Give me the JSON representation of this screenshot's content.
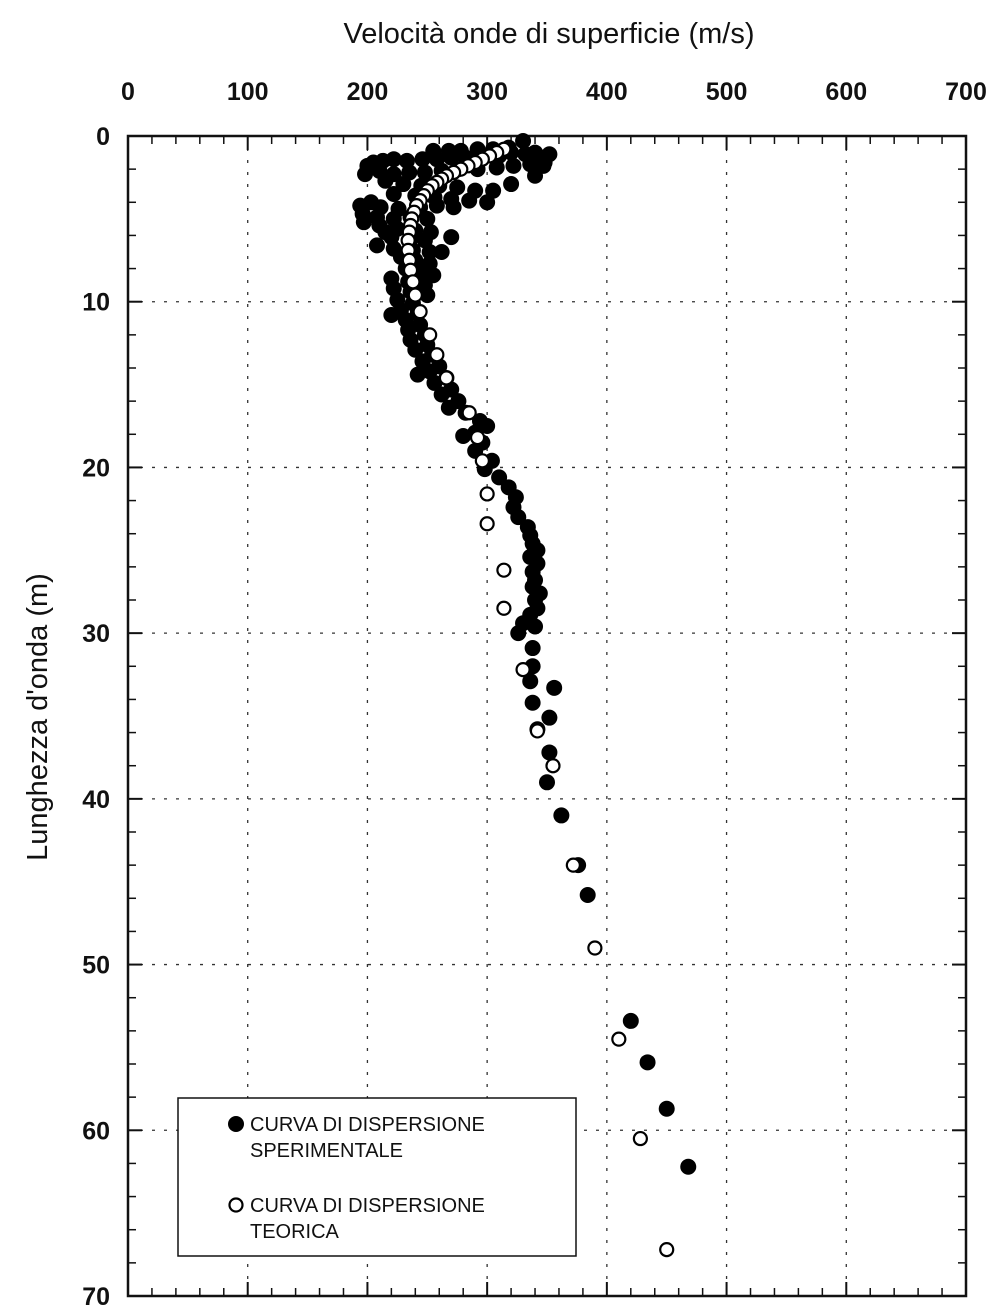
{
  "chart_data": {
    "type": "scatter",
    "xlabel": "Velocità onde di superficie (m/s)",
    "ylabel": "Lunghezza d'onda (m)",
    "xlim": [
      0,
      700
    ],
    "ylim": [
      0,
      70
    ],
    "x_axis_position": "top",
    "y_axis_inverted": true,
    "grid": true,
    "grid_style": "dotted",
    "x_ticks": [
      "0",
      "100",
      "200",
      "300",
      "400",
      "500",
      "600",
      "700"
    ],
    "y_ticks": [
      "0",
      "10",
      "20",
      "30",
      "40",
      "50",
      "60",
      "70"
    ],
    "legend_position": "bottom-left",
    "series": [
      {
        "name": "CURVA DI DISPERSIONE SPERIMENTALE",
        "marker": "filled-circle",
        "color": "#000000",
        "points": [
          [
            330,
            0.3
          ],
          [
            318,
            0.7
          ],
          [
            305,
            0.8
          ],
          [
            292,
            0.8
          ],
          [
            278,
            0.9
          ],
          [
            268,
            0.9
          ],
          [
            255,
            0.9
          ],
          [
            340,
            1.0
          ],
          [
            332,
            1.1
          ],
          [
            320,
            1.0
          ],
          [
            310,
            1.2
          ],
          [
            296,
            1.2
          ],
          [
            282,
            1.3
          ],
          [
            270,
            1.3
          ],
          [
            258,
            1.4
          ],
          [
            246,
            1.4
          ],
          [
            233,
            1.5
          ],
          [
            222,
            1.4
          ],
          [
            213,
            1.5
          ],
          [
            205,
            1.6
          ],
          [
            345,
            1.3
          ],
          [
            352,
            1.1
          ],
          [
            348,
            1.6
          ],
          [
            336,
            1.7
          ],
          [
            322,
            1.8
          ],
          [
            308,
            1.9
          ],
          [
            292,
            2.0
          ],
          [
            276,
            2.0
          ],
          [
            262,
            2.1
          ],
          [
            248,
            2.2
          ],
          [
            235,
            2.2
          ],
          [
            222,
            2.3
          ],
          [
            210,
            2.1
          ],
          [
            200,
            1.8
          ],
          [
            198,
            2.3
          ],
          [
            215,
            2.7
          ],
          [
            230,
            2.9
          ],
          [
            245,
            3.0
          ],
          [
            260,
            3.0
          ],
          [
            275,
            3.1
          ],
          [
            290,
            3.3
          ],
          [
            305,
            3.3
          ],
          [
            320,
            2.9
          ],
          [
            340,
            2.4
          ],
          [
            347,
            1.8
          ],
          [
            222,
            3.5
          ],
          [
            240,
            3.6
          ],
          [
            256,
            3.7
          ],
          [
            270,
            3.8
          ],
          [
            285,
            3.9
          ],
          [
            300,
            4.0
          ],
          [
            203,
            4.0
          ],
          [
            211,
            4.3
          ],
          [
            226,
            4.4
          ],
          [
            244,
            4.3
          ],
          [
            258,
            4.2
          ],
          [
            272,
            4.3
          ],
          [
            194,
            4.2
          ],
          [
            196,
            4.7
          ],
          [
            208,
            4.9
          ],
          [
            222,
            5.0
          ],
          [
            236,
            4.9
          ],
          [
            250,
            5.0
          ],
          [
            197,
            5.2
          ],
          [
            210,
            5.4
          ],
          [
            225,
            5.6
          ],
          [
            240,
            5.7
          ],
          [
            253,
            5.8
          ],
          [
            215,
            5.8
          ],
          [
            220,
            6.1
          ],
          [
            236,
            6.2
          ],
          [
            248,
            6.3
          ],
          [
            270,
            6.1
          ],
          [
            208,
            6.6
          ],
          [
            222,
            6.8
          ],
          [
            238,
            6.9
          ],
          [
            252,
            7.0
          ],
          [
            262,
            7.0
          ],
          [
            228,
            7.3
          ],
          [
            240,
            7.5
          ],
          [
            252,
            7.7
          ],
          [
            232,
            8.0
          ],
          [
            246,
            8.2
          ],
          [
            255,
            8.4
          ],
          [
            220,
            8.6
          ],
          [
            234,
            8.8
          ],
          [
            248,
            9.0
          ],
          [
            222,
            9.2
          ],
          [
            236,
            9.4
          ],
          [
            250,
            9.6
          ],
          [
            225,
            9.9
          ],
          [
            238,
            10.1
          ],
          [
            228,
            10.5
          ],
          [
            242,
            10.7
          ],
          [
            220,
            10.8
          ],
          [
            232,
            11.1
          ],
          [
            244,
            11.4
          ],
          [
            234,
            11.7
          ],
          [
            248,
            12.0
          ],
          [
            236,
            12.3
          ],
          [
            250,
            12.6
          ],
          [
            240,
            12.9
          ],
          [
            254,
            13.2
          ],
          [
            246,
            13.6
          ],
          [
            260,
            13.9
          ],
          [
            252,
            14.2
          ],
          [
            242,
            14.4
          ],
          [
            266,
            14.6
          ],
          [
            256,
            14.9
          ],
          [
            270,
            15.3
          ],
          [
            262,
            15.6
          ],
          [
            276,
            16.0
          ],
          [
            268,
            16.4
          ],
          [
            282,
            16.7
          ],
          [
            294,
            17.2
          ],
          [
            300,
            17.5
          ],
          [
            290,
            17.9
          ],
          [
            280,
            18.1
          ],
          [
            296,
            18.5
          ],
          [
            290,
            19.0
          ],
          [
            304,
            19.6
          ],
          [
            298,
            20.1
          ],
          [
            310,
            20.6
          ],
          [
            318,
            21.2
          ],
          [
            324,
            21.8
          ],
          [
            322,
            22.4
          ],
          [
            326,
            23.0
          ],
          [
            334,
            23.6
          ],
          [
            336,
            24.1
          ],
          [
            338,
            24.6
          ],
          [
            342,
            25.0
          ],
          [
            336,
            25.4
          ],
          [
            342,
            25.8
          ],
          [
            338,
            26.3
          ],
          [
            340,
            26.8
          ],
          [
            338,
            27.2
          ],
          [
            344,
            27.6
          ],
          [
            340,
            28.0
          ],
          [
            342,
            28.5
          ],
          [
            336,
            28.9
          ],
          [
            330,
            29.4
          ],
          [
            340,
            29.6
          ],
          [
            326,
            30.0
          ],
          [
            338,
            30.9
          ],
          [
            338,
            32.0
          ],
          [
            336,
            32.9
          ],
          [
            356,
            33.3
          ],
          [
            338,
            34.2
          ],
          [
            352,
            35.1
          ],
          [
            342,
            35.8
          ],
          [
            352,
            37.2
          ],
          [
            350,
            39.0
          ],
          [
            362,
            41.0
          ],
          [
            376,
            44.0
          ],
          [
            384,
            45.8
          ],
          [
            420,
            53.4
          ],
          [
            434,
            55.9
          ],
          [
            450,
            58.7
          ],
          [
            468,
            62.2
          ]
        ]
      },
      {
        "name": "CURVA DI DISPERSIONE TEORICA",
        "marker": "open-circle",
        "color": "#000000",
        "points": [
          [
            314,
            0.8
          ],
          [
            308,
            1.0
          ],
          [
            302,
            1.2
          ],
          [
            296,
            1.4
          ],
          [
            290,
            1.6
          ],
          [
            284,
            1.8
          ],
          [
            278,
            2.0
          ],
          [
            272,
            2.2
          ],
          [
            266,
            2.4
          ],
          [
            262,
            2.6
          ],
          [
            258,
            2.8
          ],
          [
            254,
            3.0
          ],
          [
            250,
            3.3
          ],
          [
            247,
            3.6
          ],
          [
            244,
            3.9
          ],
          [
            241,
            4.2
          ],
          [
            239,
            4.6
          ],
          [
            237,
            5.0
          ],
          [
            236,
            5.4
          ],
          [
            235,
            5.8
          ],
          [
            234,
            6.3
          ],
          [
            234,
            6.9
          ],
          [
            235,
            7.5
          ],
          [
            236,
            8.1
          ],
          [
            238,
            8.8
          ],
          [
            240,
            9.6
          ],
          [
            244,
            10.6
          ],
          [
            252,
            12.0
          ],
          [
            258,
            13.2
          ],
          [
            266,
            14.6
          ],
          [
            285,
            16.7
          ],
          [
            292,
            18.2
          ],
          [
            296,
            19.6
          ],
          [
            300,
            21.6
          ],
          [
            300,
            23.4
          ],
          [
            314,
            26.2
          ],
          [
            314,
            28.5
          ],
          [
            330,
            32.2
          ],
          [
            342,
            35.9
          ],
          [
            355,
            38.0
          ],
          [
            372,
            44.0
          ],
          [
            390,
            49.0
          ],
          [
            410,
            54.5
          ],
          [
            428,
            60.5
          ],
          [
            450,
            67.2
          ]
        ]
      }
    ]
  }
}
